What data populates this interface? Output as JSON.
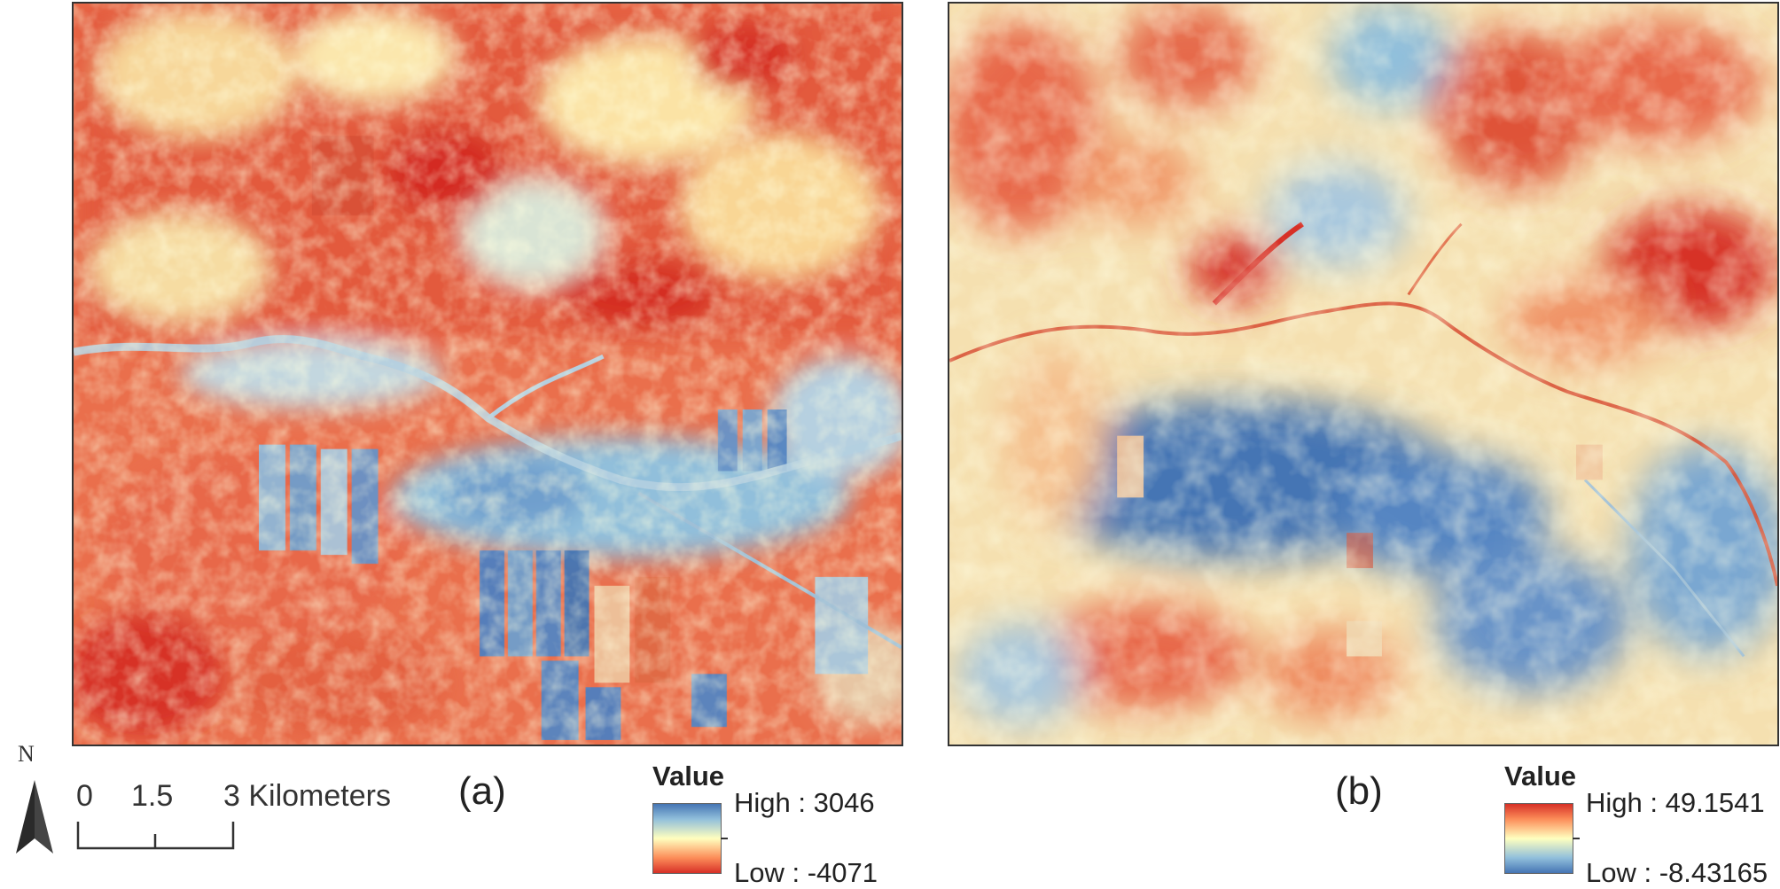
{
  "maps": [
    {
      "id": "a",
      "panel_label": "(a)",
      "legend": {
        "title": "Value",
        "high": "High : 3046",
        "low": "Low : -4071",
        "high_color": "#4575b4",
        "low_color": "#d73027"
      }
    },
    {
      "id": "b",
      "panel_label": "(b)",
      "legend": {
        "title": "Value",
        "high": "High : 49.1541",
        "low": "Low : -8.43165",
        "high_color": "#d73027",
        "low_color": "#4575b4"
      }
    }
  ],
  "north_arrow": {
    "label": "N",
    "icon": "north-arrow-icon"
  },
  "scalebar": {
    "ticks": [
      "0",
      "1.5",
      "3 Kilometers"
    ]
  },
  "palette": {
    "red": "#d73027",
    "orange": "#fc8d59",
    "cream": "#ffffbf",
    "lightblue": "#91bfdb",
    "blue": "#4575b4"
  }
}
